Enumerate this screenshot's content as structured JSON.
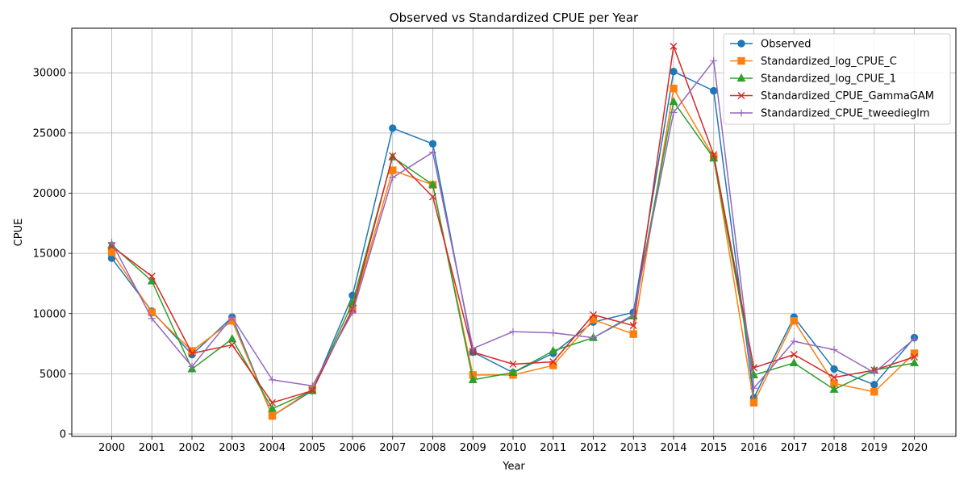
{
  "chart_data": {
    "type": "line",
    "title": "Observed vs Standardized CPUE per Year",
    "xlabel": "Year",
    "ylabel": "CPUE",
    "categories": [
      "2000",
      "2001",
      "2002",
      "2003",
      "2004",
      "2005",
      "2006",
      "2007",
      "2008",
      "2009",
      "2010",
      "2011",
      "2012",
      "2013",
      "2014",
      "2015",
      "2016",
      "2017",
      "2018",
      "2019",
      "2020"
    ],
    "ylim": [
      -200,
      33700
    ],
    "yticks": [
      0,
      5000,
      10000,
      15000,
      20000,
      25000,
      30000
    ],
    "grid": true,
    "legend_position": "upper right",
    "series": [
      {
        "name": "Observed",
        "color": "#1f77b4",
        "marker": "circle",
        "values": [
          14600,
          10200,
          6600,
          9700,
          1500,
          3600,
          11500,
          25400,
          24100,
          6800,
          5100,
          6700,
          9300,
          10100,
          30100,
          28500,
          3000,
          9700,
          5400,
          4100,
          8000
        ]
      },
      {
        "name": "Standardized_log_CPUE_C",
        "color": "#ff7f0e",
        "marker": "square",
        "values": [
          15100,
          10100,
          6900,
          9400,
          1500,
          3700,
          10300,
          21900,
          20700,
          4900,
          4900,
          5700,
          9500,
          8300,
          28700,
          23000,
          2600,
          9400,
          4200,
          3500,
          6700
        ]
      },
      {
        "name": "Standardized_log_CPUE_1",
        "color": "#2ca02c",
        "marker": "triangle",
        "values": [
          15700,
          12700,
          5400,
          7900,
          2100,
          3600,
          10900,
          23000,
          20700,
          4500,
          5100,
          6900,
          8000,
          9800,
          27600,
          22900,
          4900,
          5900,
          3700,
          5300,
          5900
        ]
      },
      {
        "name": "Standardized_CPUE_GammaGAM",
        "color": "#d62728",
        "marker": "x",
        "values": [
          15600,
          13100,
          6700,
          7400,
          2600,
          3600,
          10400,
          23100,
          19700,
          6800,
          5800,
          6000,
          9900,
          9000,
          32200,
          23200,
          5500,
          6600,
          4700,
          5300,
          6400
        ]
      },
      {
        "name": "Standardized_CPUE_tweedieglm",
        "color": "#9467bd",
        "marker": "plus",
        "values": [
          15900,
          9600,
          5600,
          9700,
          4500,
          4000,
          10100,
          21300,
          23400,
          7100,
          8500,
          8400,
          8000,
          9900,
          26700,
          31000,
          3800,
          7700,
          7000,
          5100,
          7900
        ]
      }
    ]
  }
}
